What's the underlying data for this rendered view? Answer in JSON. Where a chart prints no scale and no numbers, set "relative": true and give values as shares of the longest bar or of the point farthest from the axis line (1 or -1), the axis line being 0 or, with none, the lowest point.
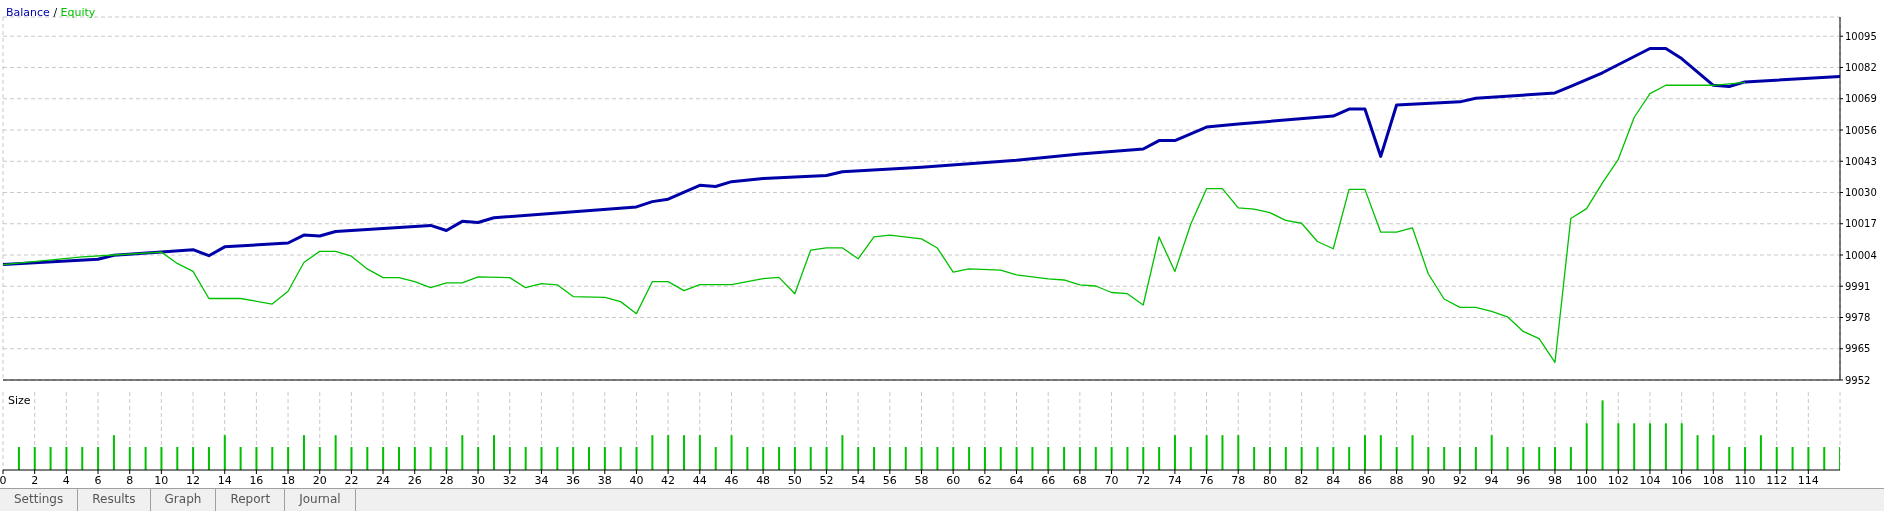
{
  "chart_data": [
    {
      "type": "line",
      "legend": "top left",
      "annotations": [
        "/"
      ],
      "grid": true,
      "tick_labels": "y",
      "xlim": [
        0,
        116
      ],
      "xticks": [
        0,
        2,
        4,
        6,
        8,
        10,
        12,
        14,
        16,
        18,
        20,
        22,
        24,
        26,
        28,
        30,
        32,
        34,
        36,
        38,
        40,
        42,
        44,
        46,
        48,
        50,
        52,
        54,
        56,
        58,
        60,
        62,
        64,
        66,
        68,
        70,
        72,
        74,
        76,
        78,
        80,
        82,
        84,
        86,
        88,
        90,
        92,
        94,
        96,
        98,
        100,
        102,
        104,
        106,
        108,
        110,
        112,
        114
      ],
      "ylim": [
        9952,
        10103
      ],
      "yticks": [
        9952,
        9965,
        9978,
        9991,
        10004,
        10017,
        10030,
        10043,
        10056,
        10069,
        10082,
        10095
      ],
      "series": [
        {
          "name": "Balance",
          "color": "#0000a8",
          "x": [
            0,
            6,
            7,
            10,
            12,
            13,
            14,
            18,
            19,
            20,
            21,
            27,
            28,
            29,
            30,
            31,
            40,
            41,
            42,
            44,
            45,
            46,
            48,
            52,
            53,
            58,
            64,
            68,
            72,
            73,
            74,
            76,
            78,
            84,
            85,
            86,
            87,
            88,
            92,
            93,
            98,
            99,
            101,
            104,
            105,
            106,
            108,
            109,
            110,
            116
          ],
          "values": [
            10000,
            10002.2,
            10003.9,
            10005.2,
            10006.2,
            10003.7,
            10007.4,
            10009.0,
            10012.3,
            10011.9,
            10013.8,
            10016.3,
            10014.2,
            10018.0,
            10017.5,
            10019.5,
            10024.0,
            10026.2,
            10027.2,
            10033.0,
            10032.5,
            10034.5,
            10035.8,
            10037.1,
            10038.6,
            10040.5,
            10043.4,
            10046,
            10048.1,
            10051.6,
            10051.6,
            10057.2,
            10058.5,
            10061.8,
            10064.7,
            10064.7,
            10045.0,
            10066.4,
            10067.7,
            10069.2,
            10071.4,
            10074.1,
            10079.8,
            10089.9,
            10089.9,
            10085.7,
            10074.6,
            10074.1,
            10076.0,
            10078.2
          ]
        },
        {
          "name": "Equity",
          "color": "#00c000",
          "x": [
            0,
            5,
            7,
            10,
            11,
            12,
            13,
            15,
            17,
            18,
            19,
            20,
            21,
            22,
            23,
            24,
            25,
            26,
            27,
            28,
            29,
            30,
            32,
            33,
            34,
            35,
            36,
            38,
            39,
            40,
            41,
            42,
            43,
            44,
            46,
            48,
            49,
            50,
            51,
            52,
            53,
            54,
            55,
            56,
            58,
            59,
            60,
            61,
            63,
            64,
            66,
            67,
            68,
            69,
            70,
            71,
            72,
            73,
            74,
            75,
            76,
            77,
            78,
            79,
            80,
            81,
            82,
            83,
            84,
            85,
            86,
            87,
            88,
            89,
            90,
            91,
            92,
            93,
            94,
            95,
            96,
            97,
            98,
            99,
            100,
            101,
            102,
            103,
            104,
            105,
            108,
            110
          ],
          "values": [
            10000,
            10003.2,
            10004,
            10005.2,
            10000.5,
            9997.2,
            9985.9,
            9985.9,
            9983.6,
            9988.9,
            10000.9,
            10005.5,
            10005.5,
            10003.5,
            9998.2,
            9994.6,
            9994.6,
            9992.9,
            9990.4,
            9992.4,
            9992.4,
            9994.9,
            9994.6,
            9990.4,
            9992.1,
            9991.6,
            9986.7,
            9986.4,
            9984.6,
            9979.6,
            9992.9,
            9992.9,
            9989.2,
            9991.7,
            9991.7,
            9994.2,
            9994.7,
            9987.9,
            10006.0,
            10007.0,
            10007.0,
            10002.4,
            10011.5,
            10012.3,
            10010.7,
            10006.9,
            9996.9,
            9998.2,
            9997.7,
            9995.7,
            9994.1,
            9993.6,
            9991.6,
            9991.1,
            9988.4,
            9987.9,
            9983.2,
            10011.5,
            9997.1,
            10016.8,
            10031.6,
            10031.6,
            10023.6,
            10023.1,
            10021.6,
            10018.4,
            10017.2,
            10009.6,
            10006.6,
            10031.3,
            10031.3,
            10013.5,
            10013.5,
            10015.3,
            9996.2,
            9985.7,
            9982.2,
            9982.2,
            9980.5,
            9978.3,
            9972.2,
            9969.2,
            9959.3,
            10019.2,
            10023.3,
            10034.0,
            10043.8,
            10061.2,
            10071.1,
            10074.6,
            10074.6,
            10075.8
          ]
        }
      ]
    },
    {
      "type": "bar",
      "title": "Size",
      "relative": true,
      "grid": "x",
      "tick_labels": "x",
      "xlim": [
        0,
        116
      ],
      "xticks": [
        0,
        2,
        4,
        6,
        8,
        10,
        12,
        14,
        16,
        18,
        20,
        22,
        24,
        26,
        28,
        30,
        32,
        34,
        36,
        38,
        40,
        42,
        44,
        46,
        48,
        50,
        52,
        54,
        56,
        58,
        60,
        62,
        64,
        66,
        68,
        70,
        72,
        74,
        76,
        78,
        80,
        82,
        84,
        86,
        88,
        90,
        92,
        94,
        96,
        98,
        100,
        102,
        104,
        106,
        108,
        110,
        112,
        114
      ],
      "color": "#00c000",
      "x": [
        1,
        2,
        3,
        4,
        5,
        6,
        7,
        8,
        9,
        10,
        11,
        12,
        13,
        14,
        15,
        16,
        17,
        18,
        19,
        20,
        21,
        22,
        23,
        24,
        25,
        26,
        27,
        28,
        29,
        30,
        31,
        32,
        33,
        34,
        35,
        36,
        37,
        38,
        39,
        40,
        41,
        42,
        43,
        44,
        45,
        46,
        47,
        48,
        49,
        50,
        51,
        52,
        53,
        54,
        55,
        56,
        57,
        58,
        59,
        60,
        61,
        62,
        63,
        64,
        65,
        66,
        67,
        68,
        69,
        70,
        71,
        72,
        73,
        74,
        75,
        76,
        77,
        78,
        79,
        80,
        81,
        82,
        83,
        84,
        85,
        86,
        87,
        88,
        89,
        90,
        91,
        92,
        93,
        94,
        95,
        96,
        97,
        98,
        99,
        100,
        101,
        102,
        103,
        104,
        105,
        106,
        107,
        108,
        109,
        110,
        111,
        112,
        113,
        114,
        115,
        116
      ],
      "values": [
        0.33,
        0.33,
        0.33,
        0.33,
        0.33,
        0.33,
        0.5,
        0.33,
        0.33,
        0.33,
        0.33,
        0.33,
        0.33,
        0.5,
        0.33,
        0.33,
        0.33,
        0.33,
        0.5,
        0.33,
        0.5,
        0.33,
        0.33,
        0.33,
        0.33,
        0.33,
        0.33,
        0.33,
        0.5,
        0.33,
        0.5,
        0.33,
        0.33,
        0.33,
        0.33,
        0.33,
        0.33,
        0.33,
        0.33,
        0.33,
        0.5,
        0.5,
        0.5,
        0.5,
        0.33,
        0.5,
        0.33,
        0.33,
        0.33,
        0.33,
        0.33,
        0.33,
        0.5,
        0.33,
        0.33,
        0.33,
        0.33,
        0.33,
        0.33,
        0.33,
        0.33,
        0.33,
        0.33,
        0.33,
        0.33,
        0.33,
        0.33,
        0.33,
        0.33,
        0.33,
        0.33,
        0.33,
        0.33,
        0.5,
        0.33,
        0.5,
        0.5,
        0.5,
        0.33,
        0.33,
        0.33,
        0.33,
        0.33,
        0.33,
        0.33,
        0.5,
        0.5,
        0.33,
        0.5,
        0.33,
        0.33,
        0.33,
        0.33,
        0.5,
        0.33,
        0.33,
        0.33,
        0.33,
        0.33,
        0.67,
        1,
        0.67,
        0.67,
        0.67,
        0.67,
        0.67,
        0.5,
        0.5,
        0.33,
        0.33,
        0.5,
        0.33,
        0.33,
        0.33,
        0.33,
        0.33
      ],
      "annotations": [
        "Settings",
        "Results",
        "Graph",
        "Report",
        "Journal"
      ]
    }
  ]
}
